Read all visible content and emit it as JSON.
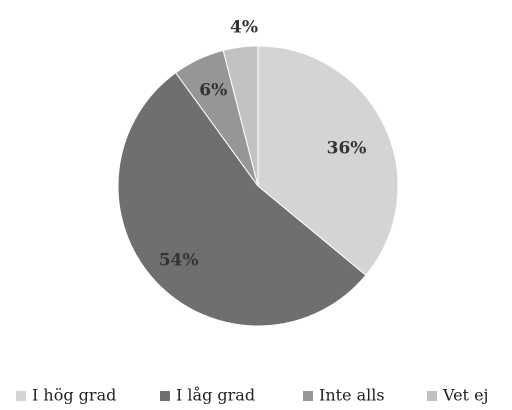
{
  "chart_data": {
    "type": "pie",
    "start_angle_deg": 0,
    "direction": "clockwise",
    "legend_position": "bottom",
    "slices": [
      {
        "label": "I hög grad",
        "value": 36,
        "value_label": "36%",
        "color": "#d4d4d4"
      },
      {
        "label": "I låg grad",
        "value": 54,
        "value_label": "54%",
        "color": "#6f6f6f"
      },
      {
        "label": "Inte alls",
        "value": 6,
        "value_label": "6%",
        "color": "#969696"
      },
      {
        "label": "Vet ej",
        "value": 4,
        "value_label": "4%",
        "color": "#c2c2c2"
      }
    ]
  }
}
